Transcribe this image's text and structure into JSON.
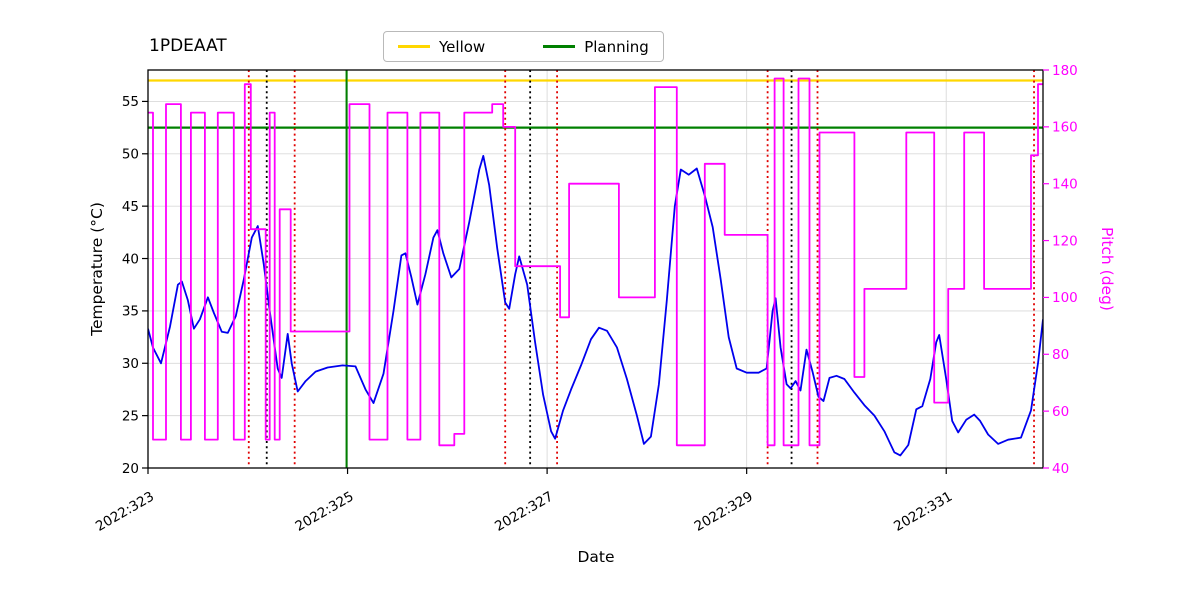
{
  "figure": {
    "title": "1PDEAAT",
    "xlabel": "Date",
    "ylabel_left": "Temperature (°C)",
    "ylabel_right": "Pitch (deg)",
    "legend": [
      {
        "label": "Yellow",
        "color": "#FFD700"
      },
      {
        "label": "Planning",
        "color": "#008000"
      }
    ]
  },
  "colors": {
    "temperature_line": "#0000EE",
    "pitch_line": "#FF00FF",
    "grid": "#d9d9d9",
    "spine": "#000000",
    "right_axis_text": "#FF00FF"
  },
  "chart_data": {
    "type": "line",
    "title": "1PDEAAT",
    "xlabel": "Date",
    "ylabel": "Temperature (°C)",
    "ylabel_right": "Pitch (deg)",
    "grid": true,
    "legend_position": "upper center",
    "xlim": [
      323.0,
      331.97
    ],
    "ylim_left": [
      20,
      58
    ],
    "ylim_right": [
      40,
      180
    ],
    "x_ticks": [
      323,
      325,
      327,
      329,
      331
    ],
    "x_tick_labels": [
      "2022:323",
      "2022:325",
      "2022:327",
      "2022:329",
      "2022:331"
    ],
    "y_ticks_left": [
      20,
      25,
      30,
      35,
      40,
      45,
      50,
      55
    ],
    "y_ticks_right": [
      40,
      60,
      80,
      100,
      120,
      140,
      160,
      180
    ],
    "hlines": [
      {
        "name": "yellow-limit-line",
        "y": 57.0,
        "color": "#FFD700",
        "width": 2.2
      },
      {
        "name": "planning-limit-line",
        "y": 52.5,
        "color": "#008000",
        "width": 2.2
      }
    ],
    "vlines": [
      {
        "name": "green-solid-vline",
        "x": 324.99,
        "color": "#008000",
        "style": "solid",
        "width": 2
      },
      {
        "name": "red-dotted-vline",
        "x": 324.01,
        "color": "#E00000",
        "style": "dotted",
        "width": 1.8
      },
      {
        "name": "red-dotted-vline",
        "x": 324.47,
        "color": "#E00000",
        "style": "dotted",
        "width": 1.8
      },
      {
        "name": "red-dotted-vline",
        "x": 326.58,
        "color": "#E00000",
        "style": "dotted",
        "width": 1.8
      },
      {
        "name": "red-dotted-vline",
        "x": 327.1,
        "color": "#E00000",
        "style": "dotted",
        "width": 1.8
      },
      {
        "name": "red-dotted-vline",
        "x": 329.21,
        "color": "#E00000",
        "style": "dotted",
        "width": 1.8
      },
      {
        "name": "red-dotted-vline",
        "x": 329.71,
        "color": "#E00000",
        "style": "dotted",
        "width": 1.8
      },
      {
        "name": "red-dotted-vline",
        "x": 331.88,
        "color": "#E00000",
        "style": "dotted",
        "width": 1.8
      },
      {
        "name": "black-dotted-vline",
        "x": 324.19,
        "color": "#000000",
        "style": "dotted",
        "width": 1.8
      },
      {
        "name": "black-dotted-vline",
        "x": 326.83,
        "color": "#000000",
        "style": "dotted",
        "width": 1.8
      },
      {
        "name": "black-dotted-vline",
        "x": 329.45,
        "color": "#000000",
        "style": "dotted",
        "width": 1.8
      }
    ],
    "series": [
      {
        "name": "temperature",
        "axis": "left",
        "color": "#0000EE",
        "width": 1.8,
        "points": [
          [
            323.0,
            33.3
          ],
          [
            323.05,
            31.5
          ],
          [
            323.13,
            30.0
          ],
          [
            323.22,
            33.5
          ],
          [
            323.3,
            37.5
          ],
          [
            323.34,
            37.8
          ],
          [
            323.4,
            36.0
          ],
          [
            323.46,
            33.3
          ],
          [
            323.52,
            34.2
          ],
          [
            323.6,
            36.3
          ],
          [
            323.66,
            34.8
          ],
          [
            323.74,
            33.0
          ],
          [
            323.8,
            32.9
          ],
          [
            323.88,
            34.5
          ],
          [
            323.96,
            38.0
          ],
          [
            324.04,
            42.0
          ],
          [
            324.1,
            43.1
          ],
          [
            324.16,
            39.5
          ],
          [
            324.22,
            35.0
          ],
          [
            324.3,
            29.5
          ],
          [
            324.34,
            28.6
          ],
          [
            324.4,
            32.8
          ],
          [
            324.44,
            30.0
          ],
          [
            324.5,
            27.3
          ],
          [
            324.58,
            28.3
          ],
          [
            324.68,
            29.2
          ],
          [
            324.8,
            29.6
          ],
          [
            324.95,
            29.8
          ],
          [
            325.08,
            29.7
          ],
          [
            325.18,
            27.5
          ],
          [
            325.26,
            26.2
          ],
          [
            325.36,
            29.0
          ],
          [
            325.46,
            35.0
          ],
          [
            325.54,
            40.3
          ],
          [
            325.58,
            40.5
          ],
          [
            325.64,
            38.2
          ],
          [
            325.7,
            35.6
          ],
          [
            325.78,
            38.5
          ],
          [
            325.86,
            42.0
          ],
          [
            325.9,
            42.7
          ],
          [
            325.96,
            40.5
          ],
          [
            326.04,
            38.2
          ],
          [
            326.12,
            39.0
          ],
          [
            326.22,
            43.5
          ],
          [
            326.32,
            48.5
          ],
          [
            326.36,
            49.8
          ],
          [
            326.42,
            47.0
          ],
          [
            326.5,
            41.0
          ],
          [
            326.58,
            35.8
          ],
          [
            326.62,
            35.2
          ],
          [
            326.68,
            38.5
          ],
          [
            326.72,
            40.2
          ],
          [
            326.8,
            37.5
          ],
          [
            326.88,
            32.0
          ],
          [
            326.96,
            27.0
          ],
          [
            327.04,
            23.5
          ],
          [
            327.08,
            22.8
          ],
          [
            327.16,
            25.5
          ],
          [
            327.24,
            27.5
          ],
          [
            327.34,
            29.8
          ],
          [
            327.44,
            32.3
          ],
          [
            327.52,
            33.4
          ],
          [
            327.6,
            33.1
          ],
          [
            327.7,
            31.5
          ],
          [
            327.8,
            28.5
          ],
          [
            327.9,
            25.0
          ],
          [
            327.97,
            22.3
          ],
          [
            328.04,
            23.0
          ],
          [
            328.12,
            28.0
          ],
          [
            328.2,
            36.0
          ],
          [
            328.28,
            45.0
          ],
          [
            328.34,
            48.5
          ],
          [
            328.42,
            48.0
          ],
          [
            328.5,
            48.6
          ],
          [
            328.58,
            46.0
          ],
          [
            328.66,
            43.0
          ],
          [
            328.74,
            38.0
          ],
          [
            328.82,
            32.5
          ],
          [
            328.9,
            29.5
          ],
          [
            329.0,
            29.1
          ],
          [
            329.12,
            29.1
          ],
          [
            329.2,
            29.5
          ],
          [
            329.26,
            35.0
          ],
          [
            329.29,
            36.2
          ],
          [
            329.34,
            31.5
          ],
          [
            329.4,
            28.0
          ],
          [
            329.44,
            27.6
          ],
          [
            329.49,
            28.3
          ],
          [
            329.54,
            27.4
          ],
          [
            329.6,
            31.3
          ],
          [
            329.66,
            29.2
          ],
          [
            329.72,
            26.8
          ],
          [
            329.77,
            26.4
          ],
          [
            329.83,
            28.6
          ],
          [
            329.9,
            28.8
          ],
          [
            329.98,
            28.5
          ],
          [
            330.08,
            27.2
          ],
          [
            330.18,
            26.0
          ],
          [
            330.28,
            25.0
          ],
          [
            330.38,
            23.5
          ],
          [
            330.48,
            21.5
          ],
          [
            330.54,
            21.2
          ],
          [
            330.62,
            22.2
          ],
          [
            330.7,
            25.6
          ],
          [
            330.76,
            25.9
          ],
          [
            330.84,
            28.5
          ],
          [
            330.9,
            32.0
          ],
          [
            330.93,
            32.7
          ],
          [
            331.0,
            28.5
          ],
          [
            331.06,
            24.5
          ],
          [
            331.12,
            23.4
          ],
          [
            331.2,
            24.6
          ],
          [
            331.28,
            25.1
          ],
          [
            331.34,
            24.5
          ],
          [
            331.42,
            23.2
          ],
          [
            331.52,
            22.3
          ],
          [
            331.62,
            22.7
          ],
          [
            331.75,
            22.9
          ],
          [
            331.85,
            25.5
          ],
          [
            331.92,
            30.0
          ],
          [
            331.97,
            34.2
          ]
        ]
      },
      {
        "name": "pitch",
        "axis": "right",
        "color": "#FF00FF",
        "width": 1.8,
        "step": "post",
        "x_end": 331.97,
        "points": [
          [
            323.0,
            165
          ],
          [
            323.05,
            50
          ],
          [
            323.18,
            168
          ],
          [
            323.33,
            50
          ],
          [
            323.43,
            165
          ],
          [
            323.57,
            50
          ],
          [
            323.7,
            165
          ],
          [
            323.86,
            50
          ],
          [
            323.97,
            175
          ],
          [
            324.03,
            124
          ],
          [
            324.18,
            50
          ],
          [
            324.22,
            165
          ],
          [
            324.27,
            50
          ],
          [
            324.32,
            131
          ],
          [
            324.43,
            88
          ],
          [
            325.02,
            168
          ],
          [
            325.22,
            50
          ],
          [
            325.4,
            165
          ],
          [
            325.6,
            50
          ],
          [
            325.73,
            165
          ],
          [
            325.92,
            48
          ],
          [
            326.07,
            52
          ],
          [
            326.17,
            165
          ],
          [
            326.45,
            168
          ],
          [
            326.56,
            160
          ],
          [
            326.68,
            111
          ],
          [
            327.13,
            93
          ],
          [
            327.22,
            140
          ],
          [
            327.72,
            100
          ],
          [
            328.08,
            174
          ],
          [
            328.3,
            48
          ],
          [
            328.58,
            147
          ],
          [
            328.78,
            122
          ],
          [
            329.21,
            48
          ],
          [
            329.28,
            177
          ],
          [
            329.37,
            48
          ],
          [
            329.52,
            177
          ],
          [
            329.63,
            48
          ],
          [
            329.73,
            158
          ],
          [
            330.08,
            72
          ],
          [
            330.18,
            103
          ],
          [
            330.6,
            158
          ],
          [
            330.88,
            63
          ],
          [
            331.02,
            103
          ],
          [
            331.18,
            158
          ],
          [
            331.38,
            103
          ],
          [
            331.85,
            150
          ],
          [
            331.92,
            175
          ]
        ]
      }
    ]
  }
}
